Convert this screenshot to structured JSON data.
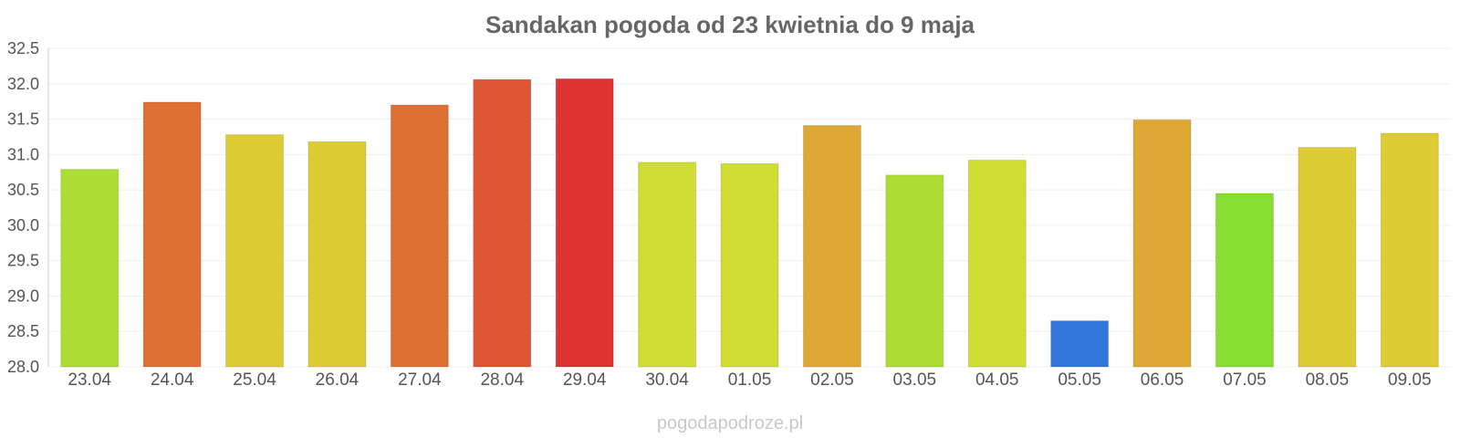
{
  "chart_data": {
    "type": "bar",
    "title": "Sandakan pogoda od 23 kwietnia do 9 maja",
    "xlabel": "",
    "ylabel": "",
    "ylim": [
      28.0,
      32.5
    ],
    "yticks": [
      "28.0",
      "28.5",
      "29.0",
      "29.5",
      "30.0",
      "30.5",
      "31.0",
      "31.5",
      "32.0",
      "32.5"
    ],
    "grid": true,
    "categories": [
      "23.04",
      "24.04",
      "25.04",
      "26.04",
      "27.04",
      "28.04",
      "29.04",
      "30.04",
      "01.05",
      "02.05",
      "03.05",
      "04.05",
      "05.05",
      "06.05",
      "07.05",
      "08.05",
      "09.05"
    ],
    "values": [
      30.79,
      31.74,
      31.28,
      31.18,
      31.7,
      32.06,
      32.07,
      30.89,
      30.87,
      31.41,
      30.71,
      30.92,
      28.65,
      31.49,
      30.45,
      31.1,
      31.3
    ],
    "colors": [
      "#addd33",
      "#de7033",
      "#ddcc33",
      "#ddcc33",
      "#de7033",
      "#dd5533",
      "#dd3333",
      "#d0dd33",
      "#d0dd33",
      "#dda833",
      "#addd33",
      "#d0dd33",
      "#3377dd",
      "#dda833",
      "#88dd33",
      "#ddcc33",
      "#ddcc33"
    ]
  },
  "watermark": "pogodapodroze.pl"
}
